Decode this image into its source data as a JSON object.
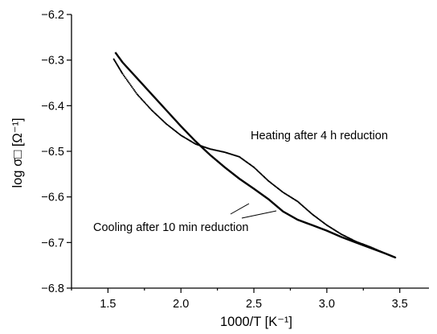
{
  "chart_data": {
    "type": "scatter",
    "xlabel": "1000/T [K⁻¹]",
    "ylabel": "log σ□ [Ω⁻¹]",
    "xlim": [
      1.25,
      3.7
    ],
    "ylim": [
      -6.8,
      -6.2
    ],
    "xticks": [
      "1.5",
      "2.0",
      "2.5",
      "3.0",
      "3.5"
    ],
    "yticks": [
      "−6.2",
      "−6.3",
      "−6.4",
      "−6.5",
      "−6.6",
      "−6.7",
      "−6.8"
    ],
    "grid": false,
    "series": [
      {
        "name": "Heating after 4 h reduction",
        "style": "dotted",
        "label_anchor": [
          2.65,
          -6.487
        ],
        "x": [
          1.54,
          1.6,
          1.7,
          1.8,
          1.9,
          2.0,
          2.1,
          2.2,
          2.3,
          2.4,
          2.5,
          2.6,
          2.7,
          2.8,
          2.9,
          3.0,
          3.1,
          3.2,
          3.3,
          3.4,
          3.47
        ],
        "y": [
          -6.298,
          -6.33,
          -6.375,
          -6.41,
          -6.44,
          -6.465,
          -6.484,
          -6.495,
          -6.502,
          -6.512,
          -6.535,
          -6.565,
          -6.59,
          -6.61,
          -6.638,
          -6.662,
          -6.682,
          -6.698,
          -6.71,
          -6.724,
          -6.733
        ]
      },
      {
        "name": "Cooling after 10 min reduction",
        "style": "solid",
        "label_anchor": [
          2.27,
          -6.689
        ],
        "x": [
          1.55,
          1.6,
          1.7,
          1.8,
          1.9,
          2.0,
          2.1,
          2.2,
          2.3,
          2.4,
          2.5,
          2.6,
          2.7,
          2.8,
          2.9,
          3.0,
          3.1,
          3.2,
          3.3,
          3.4,
          3.47
        ],
        "y": [
          -6.283,
          -6.305,
          -6.34,
          -6.375,
          -6.41,
          -6.445,
          -6.478,
          -6.508,
          -6.535,
          -6.56,
          -6.582,
          -6.605,
          -6.632,
          -6.65,
          -6.662,
          -6.674,
          -6.688,
          -6.7,
          -6.712,
          -6.724,
          -6.733
        ]
      }
    ]
  }
}
